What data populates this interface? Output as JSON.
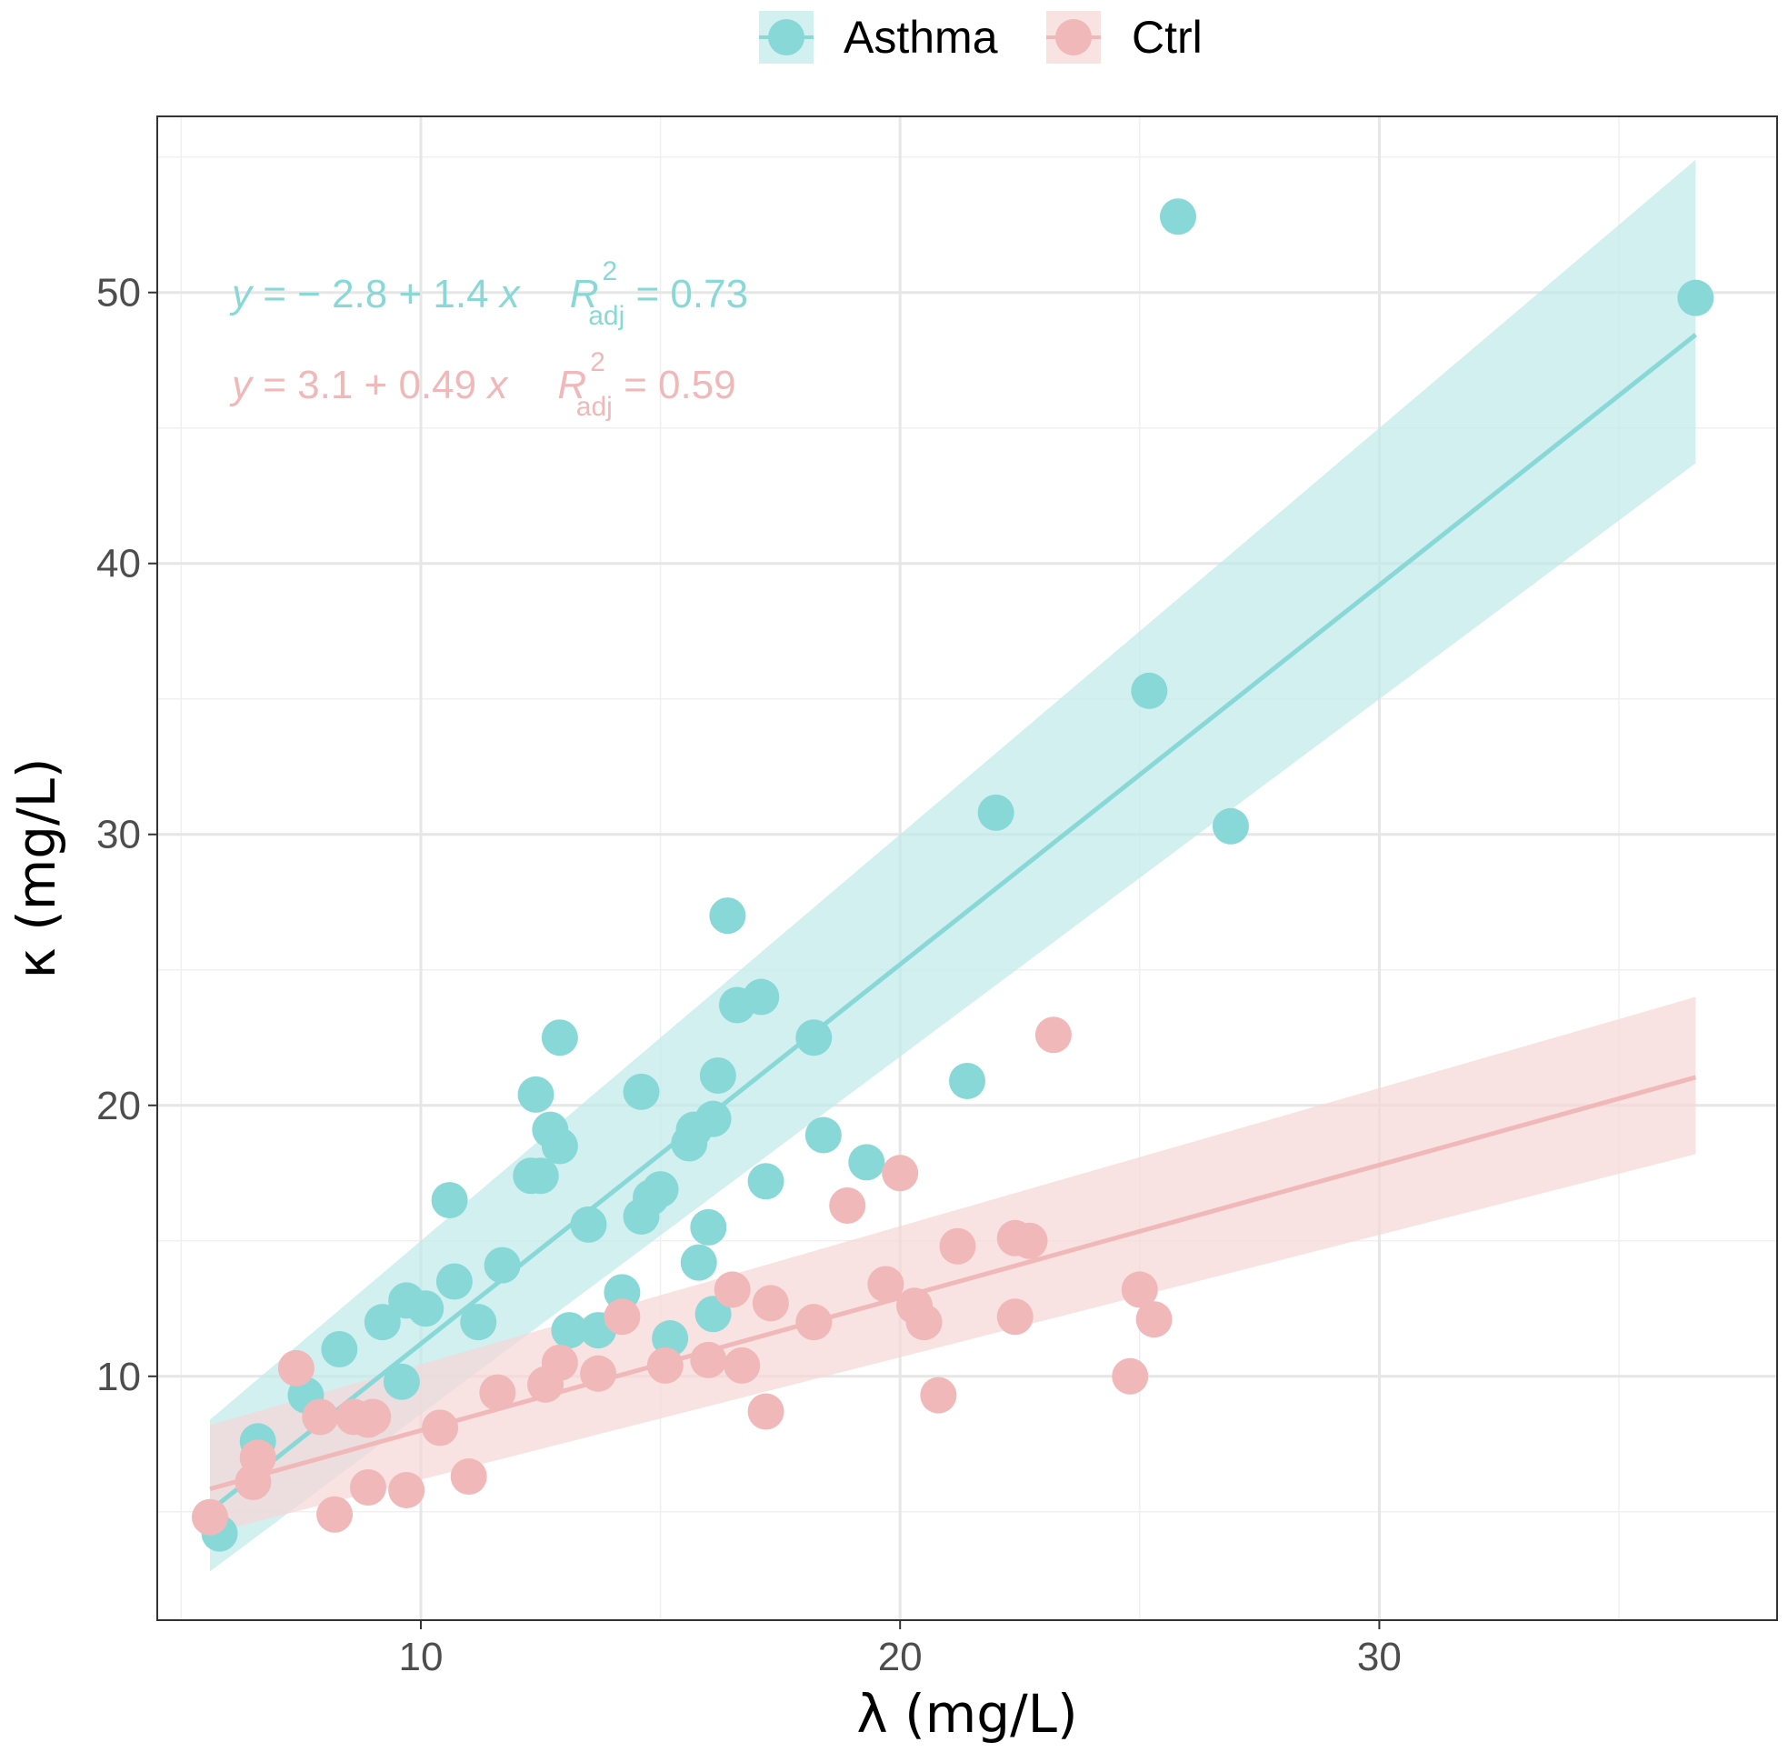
{
  "chart_data": {
    "type": "scatter",
    "xlabel": "λ (mg/L)",
    "ylabel": "κ (mg/L)",
    "xlim": [
      4.5,
      38.3
    ],
    "ylim": [
      1.0,
      56.5
    ],
    "x_ticks": [
      10,
      20,
      30
    ],
    "y_ticks": [
      10,
      20,
      30,
      40,
      50
    ],
    "x_minor_ticks": [
      5,
      15,
      25,
      35
    ],
    "y_minor_ticks": [
      5,
      15,
      25,
      35,
      45,
      55
    ],
    "grid": true,
    "legend_position": "top",
    "series": [
      {
        "name": "Asthma",
        "color": "#89D8D8",
        "band_color": "#BFEAEA",
        "fit": {
          "intercept": -2.8,
          "slope": 1.4,
          "x_range": [
            5.6,
            36.6
          ]
        },
        "band": {
          "x": [
            5.6,
            36.6
          ],
          "lower": [
            2.8,
            43.7
          ],
          "upper": [
            8.4,
            54.9
          ]
        },
        "equation": {
          "lhs": "y",
          "rhs": " = − 2.8 + 1.4 ",
          "var": "x",
          "r": "R",
          "sup": "2",
          "sub": "adj",
          "value": " = 0.73"
        },
        "x": [
          5.8,
          6.6,
          7.6,
          8.3,
          9.2,
          9.6,
          9.7,
          10.1,
          10.6,
          10.7,
          11.2,
          11.7,
          12.3,
          12.4,
          12.5,
          12.7,
          12.9,
          12.9,
          13.1,
          13.7,
          13.5,
          14.2,
          14.6,
          14.6,
          14.8,
          15.2,
          15.0,
          15.6,
          15.8,
          15.7,
          16.0,
          16.1,
          16.1,
          16.2,
          16.4,
          16.6,
          17.1,
          17.2,
          18.2,
          18.4,
          19.3,
          21.4,
          22.0,
          25.2,
          25.8,
          26.9,
          36.6
        ],
        "y": [
          4.2,
          7.6,
          9.3,
          11.0,
          12.0,
          9.8,
          12.8,
          12.5,
          16.5,
          13.5,
          12.0,
          14.1,
          17.4,
          20.4,
          17.4,
          19.1,
          22.5,
          18.5,
          11.7,
          11.7,
          15.6,
          13.1,
          15.9,
          20.5,
          16.6,
          11.4,
          16.9,
          18.6,
          14.2,
          19.1,
          15.5,
          12.3,
          19.5,
          21.1,
          27.0,
          23.7,
          24.0,
          17.2,
          22.5,
          18.9,
          17.9,
          20.9,
          30.8,
          35.3,
          52.8,
          30.3,
          49.8
        ]
      },
      {
        "name": "Ctrl",
        "color": "#F0B8B8",
        "band_color": "#F7D6D6",
        "fit": {
          "intercept": 3.1,
          "slope": 0.49,
          "x_range": [
            5.6,
            36.6
          ]
        },
        "band": {
          "x": [
            5.6,
            36.6
          ],
          "lower": [
            4.2,
            18.2
          ],
          "upper": [
            8.2,
            24.0
          ]
        },
        "equation": {
          "lhs": "y",
          "rhs": " = 3.1 + 0.49 ",
          "var": "x",
          "r": "R",
          "sup": "2",
          "sub": "adj",
          "value": " = 0.59"
        },
        "x": [
          5.6,
          6.5,
          6.6,
          7.4,
          7.9,
          8.2,
          8.6,
          8.9,
          8.9,
          9.0,
          9.7,
          10.4,
          11.0,
          11.6,
          12.6,
          12.9,
          13.7,
          14.2,
          15.1,
          16.0,
          16.5,
          16.7,
          17.2,
          17.3,
          18.2,
          18.9,
          19.7,
          20.0,
          20.3,
          20.5,
          20.8,
          21.2,
          22.4,
          22.4,
          22.7,
          23.2,
          24.8,
          25.0,
          25.3
        ],
        "y": [
          4.8,
          6.1,
          7.0,
          10.3,
          8.5,
          4.9,
          8.5,
          5.9,
          8.4,
          8.5,
          5.8,
          8.1,
          6.3,
          9.4,
          9.7,
          10.5,
          10.1,
          12.2,
          10.4,
          10.6,
          13.2,
          10.4,
          8.7,
          12.7,
          12.0,
          16.3,
          13.4,
          17.5,
          12.6,
          12.0,
          9.3,
          14.8,
          15.1,
          12.2,
          15.0,
          22.6,
          10.0,
          13.2,
          12.1
        ]
      }
    ]
  }
}
